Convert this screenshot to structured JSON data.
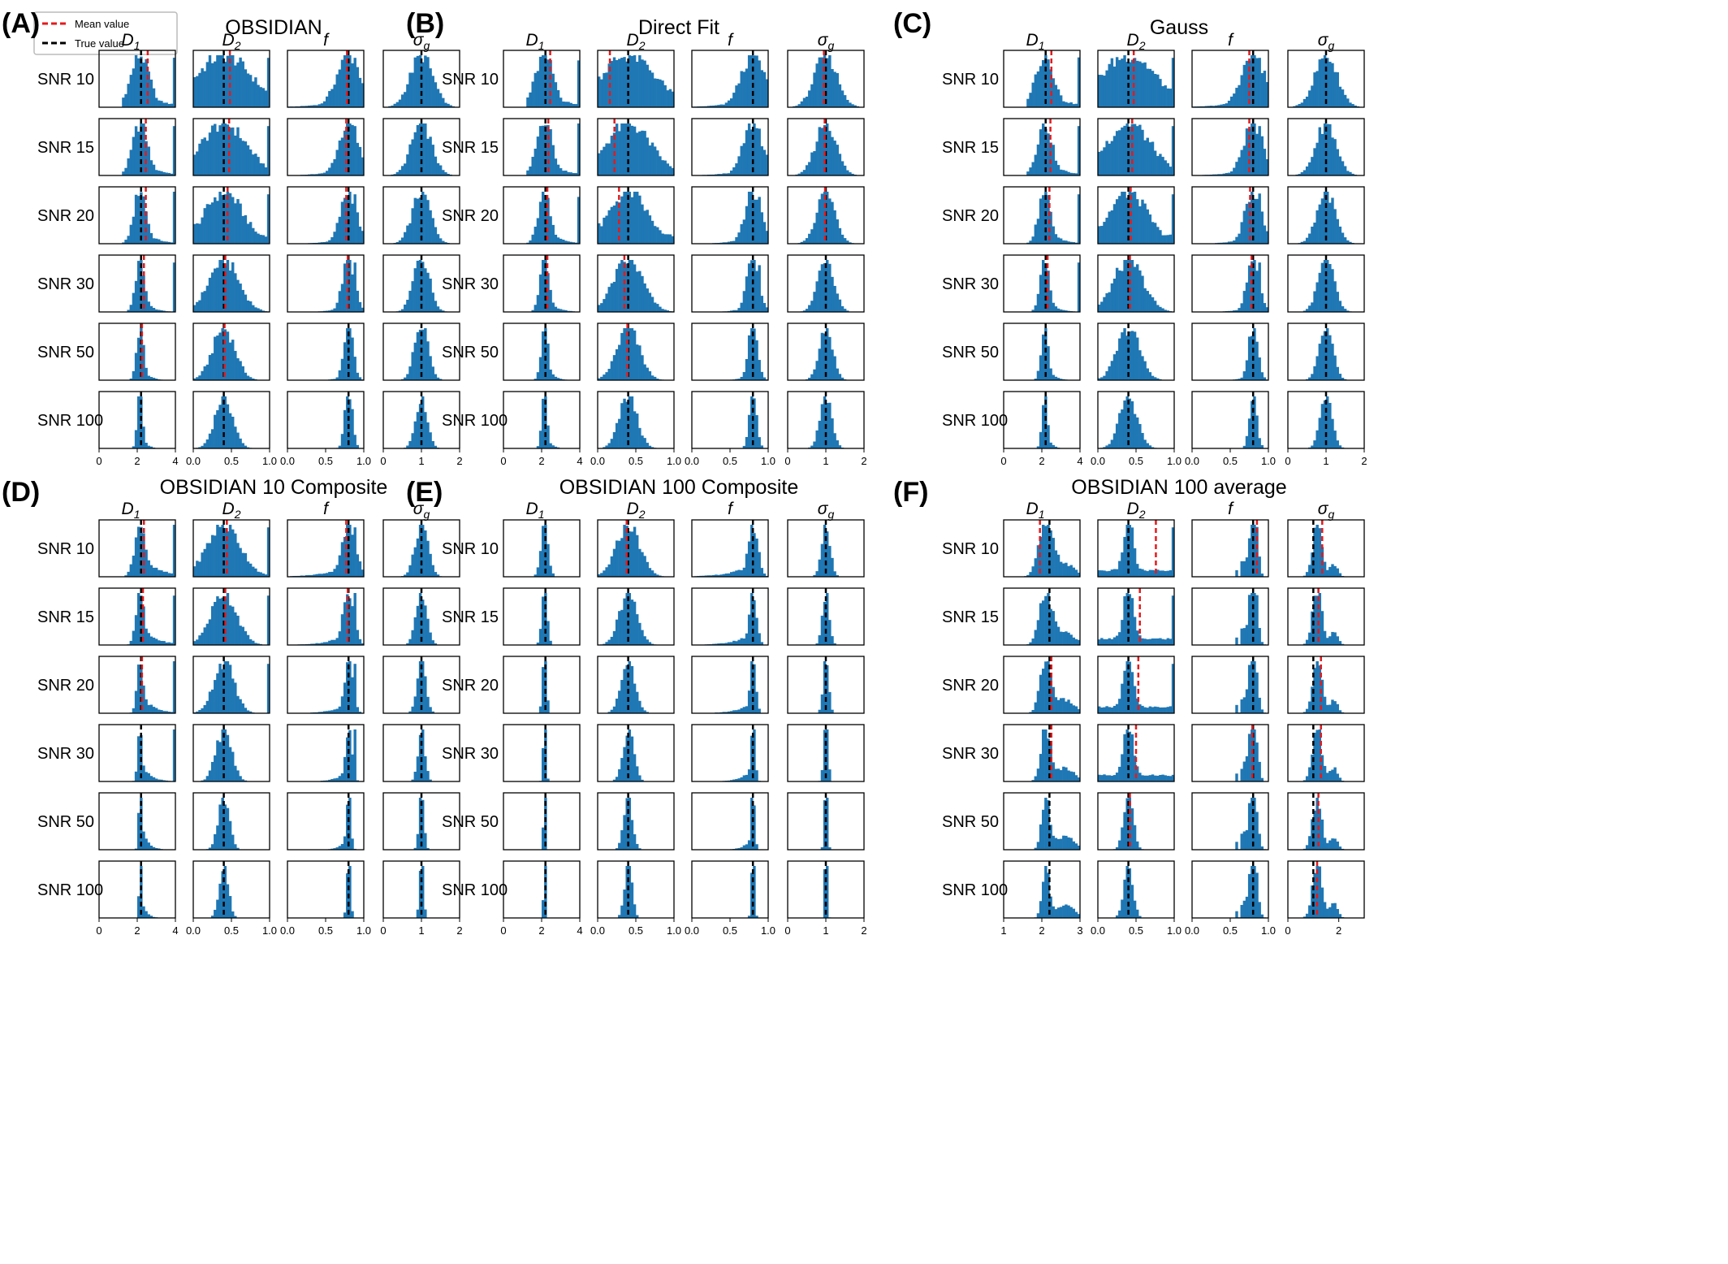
{
  "legend": {
    "mean_label": "Mean value",
    "true_label": "True value",
    "position": "top-left",
    "mean_color": "#e41a1c",
    "true_color": "#000000"
  },
  "colors": {
    "bar": "#1f77b4",
    "frame": "#000000"
  },
  "panels": [
    {
      "letter": "(A)",
      "title": "OBSIDIAN"
    },
    {
      "letter": "(B)",
      "title": "Direct Fit"
    },
    {
      "letter": "(C)",
      "title": "Gauss"
    },
    {
      "letter": "(D)",
      "title": "OBSIDIAN 10 Composite"
    },
    {
      "letter": "(E)",
      "title": "OBSIDIAN 100 Composite"
    },
    {
      "letter": "(F)",
      "title": "OBSIDIAN 100 average"
    }
  ],
  "params": [
    {
      "main": "D",
      "sub": "1"
    },
    {
      "main": "D",
      "sub": "2"
    },
    {
      "main": "f",
      "sub": ""
    },
    {
      "main": "σ",
      "sub": "g"
    }
  ],
  "snr_labels": [
    "SNR 10",
    "SNR 15",
    "SNR 20",
    "SNR 30",
    "SNR 50",
    "SNR 100"
  ],
  "chart_data": {
    "type": "bar",
    "description_free": true,
    "true_values": {
      "D1": 2.2,
      "D2": 0.4,
      "f": 0.8,
      "sigma_g": 1.0
    },
    "axes": {
      "D1": {
        "xlim": [
          0,
          4
        ],
        "ticks": [
          "0",
          "2",
          "4"
        ],
        "tick_values": [
          0,
          2,
          4
        ]
      },
      "D1_F": {
        "xlim": [
          1,
          3
        ],
        "ticks": [
          "1",
          "2",
          "3"
        ],
        "tick_values": [
          1,
          2,
          3
        ]
      },
      "D2": {
        "xlim": [
          0,
          1
        ],
        "ticks": [
          "0.0",
          "0.5",
          "1.0"
        ],
        "tick_values": [
          0,
          0.5,
          1
        ]
      },
      "f": {
        "xlim": [
          0,
          1
        ],
        "ticks": [
          "0.0",
          "0.5",
          "1.0"
        ],
        "tick_values": [
          0,
          0.5,
          1
        ]
      },
      "sigma_g": {
        "xlim": [
          0,
          2
        ],
        "ticks": [
          "0",
          "1",
          "2"
        ],
        "tick_values": [
          0,
          1,
          2
        ]
      }
    },
    "mean_values": {
      "A": [
        [
          2.55,
          0.48,
          0.78,
          1.0
        ],
        [
          2.45,
          0.47,
          0.77,
          1.0
        ],
        [
          2.45,
          0.45,
          0.77,
          1.0
        ],
        [
          2.35,
          0.42,
          0.79,
          1.0
        ],
        [
          2.25,
          0.41,
          0.8,
          1.0
        ],
        [
          2.2,
          0.4,
          0.8,
          1.0
        ]
      ],
      "B": [
        [
          2.45,
          0.16,
          0.8,
          0.95
        ],
        [
          2.35,
          0.22,
          0.8,
          0.97
        ],
        [
          2.3,
          0.28,
          0.8,
          0.98
        ],
        [
          2.3,
          0.35,
          0.8,
          1.0
        ],
        [
          2.2,
          0.39,
          0.8,
          1.0
        ],
        [
          2.2,
          0.4,
          0.8,
          1.0
        ]
      ],
      "C": [
        [
          2.5,
          0.47,
          0.75,
          1.0
        ],
        [
          2.45,
          0.45,
          0.75,
          1.0
        ],
        [
          2.4,
          0.43,
          0.76,
          1.0
        ],
        [
          2.3,
          0.42,
          0.78,
          1.0
        ],
        [
          2.2,
          0.4,
          0.8,
          1.0
        ],
        [
          2.2,
          0.4,
          0.8,
          1.0
        ]
      ],
      "D": [
        [
          2.35,
          0.44,
          0.77,
          1.0
        ],
        [
          2.3,
          0.42,
          0.79,
          1.0
        ],
        [
          2.25,
          0.4,
          0.8,
          1.0
        ],
        [
          2.2,
          0.4,
          0.8,
          1.0
        ],
        [
          2.2,
          0.4,
          0.8,
          1.0
        ],
        [
          2.2,
          0.4,
          0.8,
          1.0
        ]
      ],
      "E": [
        [
          2.2,
          0.38,
          0.8,
          1.0
        ],
        [
          2.2,
          0.4,
          0.8,
          1.0
        ],
        [
          2.2,
          0.4,
          0.8,
          1.0
        ],
        [
          2.2,
          0.4,
          0.8,
          1.0
        ],
        [
          2.2,
          0.4,
          0.8,
          1.0
        ],
        [
          2.2,
          0.4,
          0.8,
          1.0
        ]
      ],
      "F": [
        [
          1.95,
          0.76,
          0.85,
          1.35
        ],
        [
          2.2,
          0.55,
          0.8,
          1.2
        ],
        [
          2.25,
          0.53,
          0.8,
          1.3
        ],
        [
          2.25,
          0.5,
          0.79,
          1.3
        ],
        [
          2.2,
          0.42,
          0.8,
          1.2
        ],
        [
          2.2,
          0.4,
          0.8,
          1.15
        ]
      ]
    }
  }
}
